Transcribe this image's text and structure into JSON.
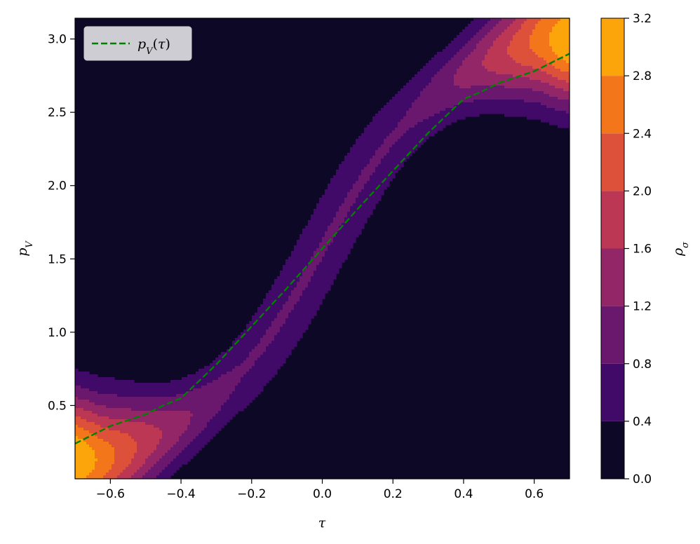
{
  "chart_data": {
    "type": "heatmap",
    "title": "",
    "xlabel": "τ",
    "ylabel": "p_V",
    "xlim": [
      -0.7,
      0.7
    ],
    "ylim": [
      0.0,
      3.14159
    ],
    "x_ticks": [
      -0.6,
      -0.4,
      -0.2,
      0.0,
      0.2,
      0.4,
      0.6
    ],
    "x_tick_labels": [
      "−0.6",
      "−0.4",
      "−0.2",
      "0.0",
      "0.2",
      "0.4",
      "0.6"
    ],
    "y_ticks": [
      0.5,
      1.0,
      1.5,
      2.0,
      2.5,
      3.0
    ],
    "y_tick_labels": [
      "0.5",
      "1.0",
      "1.5",
      "2.0",
      "2.5",
      "3.0"
    ],
    "colorbar": {
      "label": "ρ_σ",
      "levels": [
        0.0,
        0.4,
        0.8,
        1.2,
        1.6,
        2.0,
        2.4,
        2.8,
        3.2
      ],
      "tick_labels": [
        "0.0",
        "0.4",
        "0.8",
        "1.2",
        "1.6",
        "2.0",
        "2.4",
        "2.8",
        "3.2"
      ],
      "colors": [
        "#0c0826",
        "#410a68",
        "#6a176e",
        "#932667",
        "#bc3754",
        "#dd513a",
        "#f3761b",
        "#fca50a",
        "#f6d746"
      ]
    },
    "grid": false,
    "legend": {
      "placement": "top-left",
      "entries": [
        {
          "label": "p_V(τ)",
          "color": "#008000",
          "style": "dashed"
        }
      ]
    },
    "series": [
      {
        "name": "p_V(τ)",
        "style": "dashed",
        "color": "#008000",
        "x": [
          -0.7,
          -0.6,
          -0.5,
          -0.45,
          -0.4,
          -0.3,
          -0.2,
          -0.1,
          0.0,
          0.1,
          0.2,
          0.3,
          0.4,
          0.45,
          0.5,
          0.6,
          0.7
        ],
        "y": [
          0.24,
          0.36,
          0.44,
          0.5,
          0.55,
          0.78,
          1.04,
          1.3,
          1.57,
          1.84,
          2.1,
          2.36,
          2.59,
          2.64,
          2.7,
          2.78,
          2.9
        ]
      }
    ]
  }
}
